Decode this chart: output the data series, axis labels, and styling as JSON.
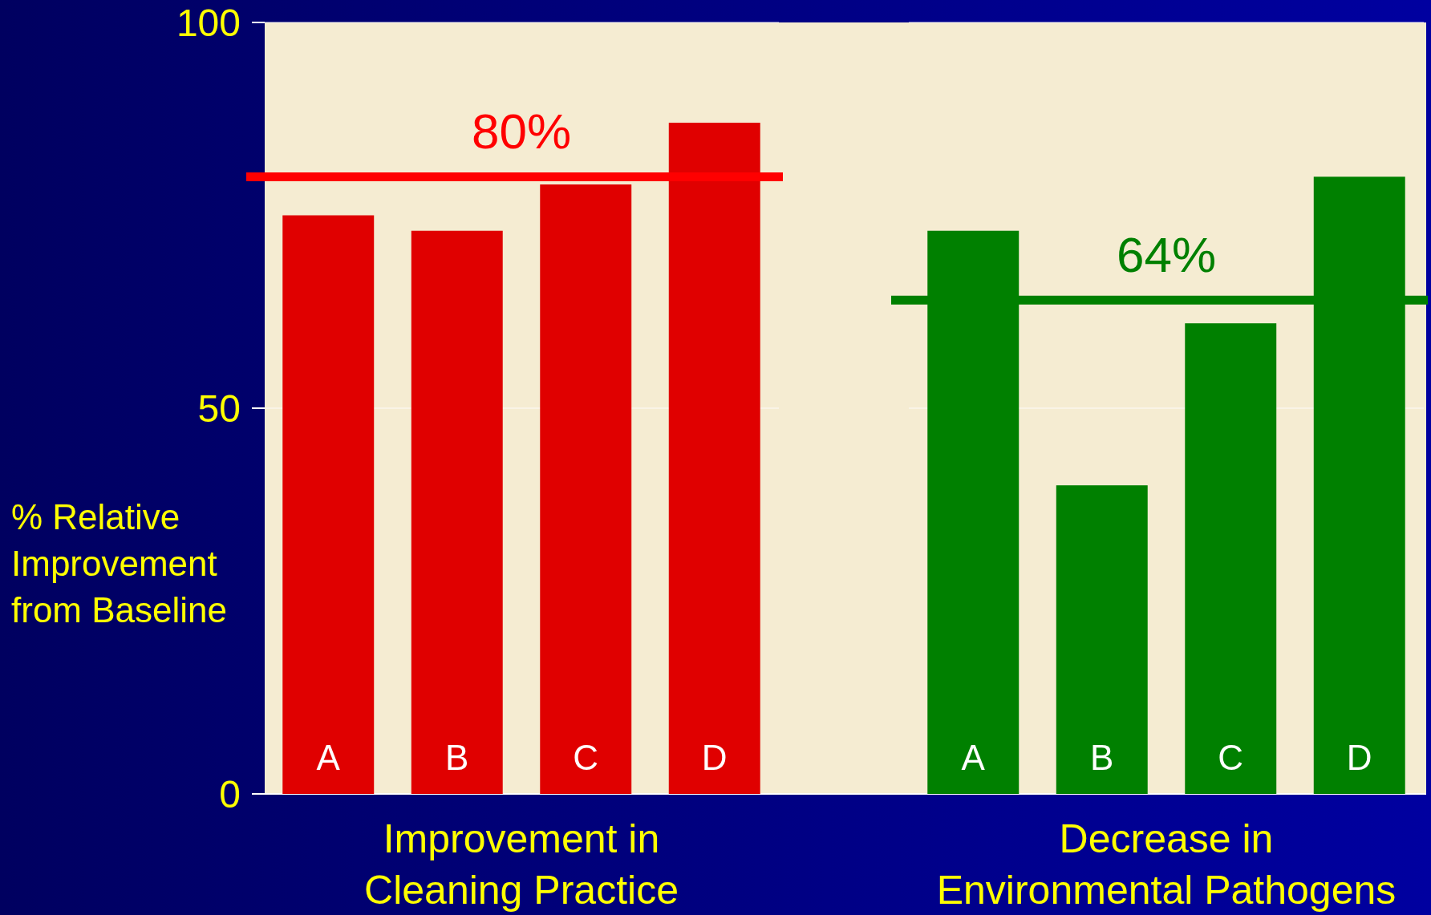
{
  "chart_data": [
    {
      "type": "bar",
      "categories": [
        "A",
        "B",
        "C",
        "D"
      ],
      "values": [
        75,
        73,
        79,
        87
      ],
      "color": "#e00000",
      "ylim": [
        0,
        100
      ],
      "yticks": [
        0,
        50,
        100
      ],
      "grid": "y",
      "ylabel": "% Relative Improvement from Baseline",
      "xlabel": "Improvement in Cleaning Practice",
      "ref_lines": [
        {
          "axis": "y",
          "value": 80,
          "label": "80%",
          "color": "#ff0000"
        }
      ]
    },
    {
      "type": "bar",
      "categories": [
        "A",
        "B",
        "C",
        "D"
      ],
      "values": [
        73,
        40,
        61,
        80
      ],
      "color": "#008000",
      "ylim": [
        0,
        100
      ],
      "yticks": [
        0,
        50,
        100
      ],
      "tick_labels": "x",
      "grid": "y",
      "xlabel": "Decrease in Environmental Pathogens",
      "ref_lines": [
        {
          "axis": "y",
          "value": 64,
          "label": "64%",
          "color": "#008000"
        }
      ]
    }
  ]
}
